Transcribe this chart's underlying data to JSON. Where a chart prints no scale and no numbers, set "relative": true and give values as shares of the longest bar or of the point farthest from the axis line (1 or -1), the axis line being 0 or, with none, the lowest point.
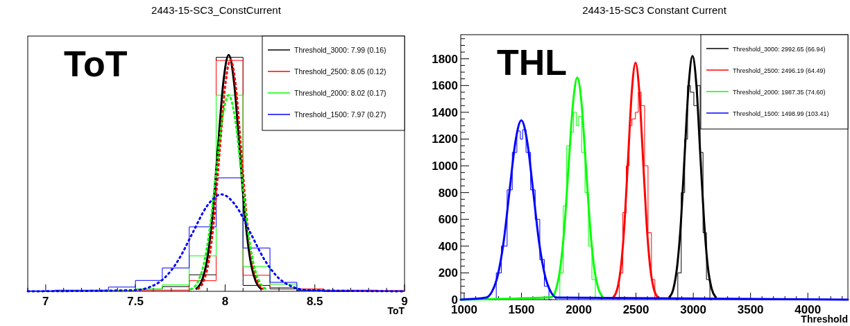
{
  "chart_data": [
    {
      "type": "histogram",
      "title": "2443-15-SC3_ConstCurrent",
      "xlabel": "ToT",
      "relative": true,
      "tick_labels": "x",
      "legend": "top right",
      "grid": false,
      "marker": "none",
      "annotations": [
        "ToT"
      ],
      "xlim": [
        6.9,
        9
      ],
      "xticks": [
        7,
        7.5,
        8,
        8.5,
        9
      ],
      "bins": [
        6.9,
        7.05,
        7.2,
        7.35,
        7.5,
        7.65,
        7.8,
        7.95,
        8.1,
        8.25,
        8.4,
        8.55,
        8.7,
        8.85,
        9.0
      ],
      "series": [
        {
          "name": "Threshold_3000: 7.99 (0.16)",
          "color": "#000000",
          "values": [
            0,
            0,
            0,
            0.003,
            0.01,
            0.02,
            0.07,
            0.99,
            0.025,
            0.01,
            0.003,
            0,
            0,
            0
          ]
        },
        {
          "name": "Threshold_2500: 8.05 (0.12)",
          "color": "#ff0000",
          "values": [
            0,
            0,
            0,
            0.002,
            0.005,
            0.005,
            0.045,
            0.977,
            0.068,
            0.016,
            0.01,
            0.005,
            0.005,
            0.003
          ]
        },
        {
          "name": "Threshold_2000: 8.02 (0.17)",
          "color": "#00ff00",
          "values": [
            0,
            0,
            0,
            0.003,
            0.01,
            0.027,
            0.15,
            0.83,
            0.105,
            0.03,
            0.005,
            0.002,
            0,
            0
          ]
        },
        {
          "name": "Threshold_1500: 7.97 (0.27)",
          "color": "#0000ff",
          "values": [
            0.002,
            0.005,
            0.005,
            0.018,
            0.046,
            0.099,
            0.273,
            0.48,
            0.183,
            0.038,
            0.005,
            0.002,
            0.002,
            0.002
          ]
        },
        {
          "type": "line",
          "line_style": "solid",
          "color": "#000000",
          "x": [
            7.84,
            7.87,
            7.9,
            7.93,
            7.96,
            7.99,
            8.02,
            8.05,
            8.08,
            8.11,
            8.14,
            8.17,
            8.2
          ],
          "values": [
            0.011,
            0.044,
            0.135,
            0.325,
            0.607,
            0.883,
            1,
            0.883,
            0.607,
            0.325,
            0.135,
            0.044,
            0.011
          ]
        },
        {
          "type": "line",
          "line_style": "dotted",
          "color": "#ff0000",
          "x": [
            7.85,
            7.88,
            7.91,
            7.94,
            7.97,
            8.0,
            8.03,
            8.06,
            8.09,
            8.12,
            8.15,
            8.18,
            8.21
          ],
          "values": [
            0.011,
            0.043,
            0.132,
            0.318,
            0.594,
            0.865,
            0.98,
            0.865,
            0.594,
            0.318,
            0.132,
            0.043,
            0.011
          ]
        },
        {
          "type": "line",
          "line_style": "dotted",
          "color": "#00ff00",
          "x": [
            7.81,
            7.845,
            7.88,
            7.915,
            7.95,
            7.985,
            8.02,
            8.055,
            8.09,
            8.125,
            8.16,
            8.195,
            8.23
          ],
          "values": [
            0.009,
            0.036,
            0.112,
            0.269,
            0.503,
            0.732,
            0.83,
            0.732,
            0.503,
            0.269,
            0.112,
            0.036,
            0.009
          ]
        },
        {
          "type": "line",
          "line_style": "dotted",
          "color": "#0000ff",
          "x": [
            6.9,
            7.5,
            7.58,
            7.66,
            7.74,
            7.82,
            7.9,
            7.98,
            8.06,
            8.14,
            8.22,
            8.3,
            8.38,
            8.46,
            9.0
          ],
          "values": [
            0,
            0.005,
            0.018,
            0.055,
            0.133,
            0.249,
            0.362,
            0.41,
            0.362,
            0.249,
            0.133,
            0.055,
            0.018,
            0.005,
            0
          ]
        }
      ]
    },
    {
      "type": "step",
      "title": "2443-15-SC3 Constant Current",
      "xlabel": "Threshold",
      "legend": "top right",
      "grid": false,
      "marker": "none",
      "annotations": [
        "THL"
      ],
      "xlim": [
        970,
        4350
      ],
      "xticks": [
        1000,
        1500,
        2000,
        2500,
        3000,
        3500,
        4000
      ],
      "ylim": [
        0,
        1980
      ],
      "yticks": [
        0,
        200,
        400,
        600,
        800,
        1000,
        1200,
        1400,
        1600,
        1800
      ],
      "series": [
        {
          "name": "Threshold_3000: 2992.65 (66.94)",
          "color": "#000000",
          "x": [
            2850,
            2880,
            2910,
            2940,
            2960,
            2990,
            3020,
            3050,
            3070,
            3100,
            3130,
            3160
          ],
          "values": [
            0,
            200,
            800,
            1200,
            1600,
            1550,
            1450,
            1600,
            1100,
            500,
            150,
            0
          ]
        },
        {
          "name": "Threshold_2500: 2496.19 (64.49)",
          "color": "#ff0000",
          "x": [
            2340,
            2370,
            2400,
            2430,
            2450,
            2480,
            2510,
            2530,
            2560,
            2590,
            2620,
            2650,
            2680
          ],
          "values": [
            0,
            200,
            650,
            1000,
            1300,
            1350,
            1400,
            1550,
            1450,
            1000,
            500,
            150,
            0
          ]
        },
        {
          "name": "Threshold_2000: 1987.35 (74.60)",
          "color": "#00ff00",
          "x": [
            1820,
            1850,
            1880,
            1910,
            1940,
            1970,
            1990,
            2010,
            2040,
            2070,
            2100,
            2130,
            2160
          ],
          "values": [
            0,
            200,
            700,
            1150,
            1250,
            1400,
            1300,
            1370,
            1100,
            800,
            400,
            150,
            0
          ]
        },
        {
          "name": "Threshold_1500: 1498.99 (103.41)",
          "color": "#0000ff",
          "x": [
            1260,
            1300,
            1350,
            1400,
            1440,
            1480,
            1500,
            1520,
            1560,
            1600,
            1640,
            1680,
            1720,
            1760
          ],
          "values": [
            0,
            200,
            400,
            820,
            1100,
            1260,
            1200,
            1270,
            1100,
            820,
            600,
            300,
            100,
            0
          ]
        },
        {
          "type": "line",
          "line_style": "solid",
          "color": "#000000",
          "x": [
            2792,
            2826,
            2859,
            2893,
            2926,
            2960,
            2993,
            3027,
            3060,
            3094,
            3127,
            3161,
            3194
          ],
          "values": [
            20,
            80,
            246,
            591,
            1104,
            1606,
            1820,
            1606,
            1104,
            591,
            246,
            80,
            20
          ]
        },
        {
          "type": "line",
          "line_style": "solid",
          "color": "#ff0000",
          "x": [
            2304,
            2336,
            2368,
            2400,
            2432,
            2464,
            2496,
            2528,
            2560,
            2592,
            2624,
            2656,
            2688
          ],
          "values": [
            20,
            78,
            240,
            575,
            1074,
            1562,
            1770,
            1562,
            1074,
            575,
            240,
            78,
            20
          ]
        },
        {
          "type": "line",
          "line_style": "solid",
          "color": "#00ff00",
          "x": [
            970,
            1762,
            1800,
            1837,
            1875,
            1912,
            1950,
            1987,
            2025,
            2062,
            2100,
            2137,
            2175,
            2212
          ],
          "values": [
            0,
            18,
            73,
            226,
            539,
            1007,
            1465,
            1660,
            1465,
            1007,
            539,
            226,
            73,
            18
          ]
        },
        {
          "type": "line",
          "line_style": "solid",
          "color": "#0000ff",
          "x": [
            970,
            1190,
            1242,
            1293,
            1345,
            1396,
            1448,
            1499,
            1550,
            1602,
            1653,
            1705,
            1756,
            1808,
            4350
          ],
          "values": [
            0,
            15,
            59,
            181,
            435,
            813,
            1183,
            1340,
            1183,
            813,
            435,
            181,
            59,
            15,
            0
          ]
        }
      ]
    }
  ]
}
